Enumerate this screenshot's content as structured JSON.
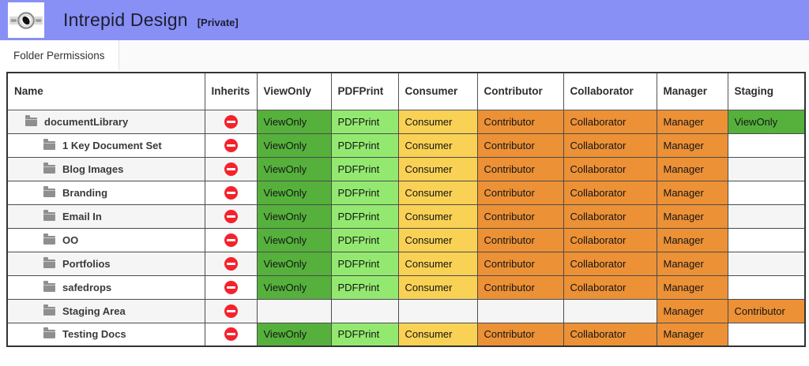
{
  "header": {
    "title": "Intrepid Design",
    "badge": "[Private]"
  },
  "tabs": [
    {
      "label": "Folder Permissions",
      "active": true
    }
  ],
  "theme": {
    "topbar": "#8890f5",
    "no_entry_red": "#f5222b",
    "folder_gray": "#8f8f8f",
    "row_alt": "#f5f5f5"
  },
  "colors": {
    "ViewOnly": "#55b13c",
    "PDFPrint": "#93e970",
    "Consumer": "#f9d155",
    "Contributor": "#ec9136",
    "Collaborator": "#ec9136",
    "Manager": "#ec9136"
  },
  "table": {
    "columns": [
      "Name",
      "Inherits",
      "ViewOnly",
      "PDFPrint",
      "Consumer",
      "Contributor",
      "Collaborator",
      "Manager",
      "Staging"
    ],
    "inherits_icon": "no-entry-icon",
    "rows": [
      {
        "name": "documentLibrary",
        "level": 1,
        "inherits": "denied",
        "values": [
          "ViewOnly",
          "PDFPrint",
          "Consumer",
          "Contributor",
          "Collaborator",
          "Manager",
          "ViewOnly"
        ]
      },
      {
        "name": "1 Key Document Set",
        "level": 2,
        "inherits": "denied",
        "values": [
          "ViewOnly",
          "PDFPrint",
          "Consumer",
          "Contributor",
          "Collaborator",
          "Manager",
          ""
        ]
      },
      {
        "name": "Blog Images",
        "level": 2,
        "inherits": "denied",
        "values": [
          "ViewOnly",
          "PDFPrint",
          "Consumer",
          "Contributor",
          "Collaborator",
          "Manager",
          ""
        ]
      },
      {
        "name": "Branding",
        "level": 2,
        "inherits": "denied",
        "values": [
          "ViewOnly",
          "PDFPrint",
          "Consumer",
          "Contributor",
          "Collaborator",
          "Manager",
          ""
        ]
      },
      {
        "name": "Email In",
        "level": 2,
        "inherits": "denied",
        "values": [
          "ViewOnly",
          "PDFPrint",
          "Consumer",
          "Contributor",
          "Collaborator",
          "Manager",
          ""
        ]
      },
      {
        "name": "OO",
        "level": 2,
        "inherits": "denied",
        "values": [
          "ViewOnly",
          "PDFPrint",
          "Consumer",
          "Contributor",
          "Collaborator",
          "Manager",
          ""
        ]
      },
      {
        "name": "Portfolios",
        "level": 2,
        "inherits": "denied",
        "values": [
          "ViewOnly",
          "PDFPrint",
          "Consumer",
          "Contributor",
          "Collaborator",
          "Manager",
          ""
        ]
      },
      {
        "name": "safedrops",
        "level": 2,
        "inherits": "denied",
        "values": [
          "ViewOnly",
          "PDFPrint",
          "Consumer",
          "Contributor",
          "Collaborator",
          "Manager",
          ""
        ]
      },
      {
        "name": "Staging Area",
        "level": 2,
        "inherits": "denied",
        "values": [
          "",
          "",
          "",
          "",
          "",
          "Manager",
          "Contributor"
        ]
      },
      {
        "name": "Testing Docs",
        "level": 2,
        "inherits": "denied",
        "values": [
          "ViewOnly",
          "PDFPrint",
          "Consumer",
          "Contributor",
          "Collaborator",
          "Manager",
          ""
        ]
      }
    ]
  }
}
